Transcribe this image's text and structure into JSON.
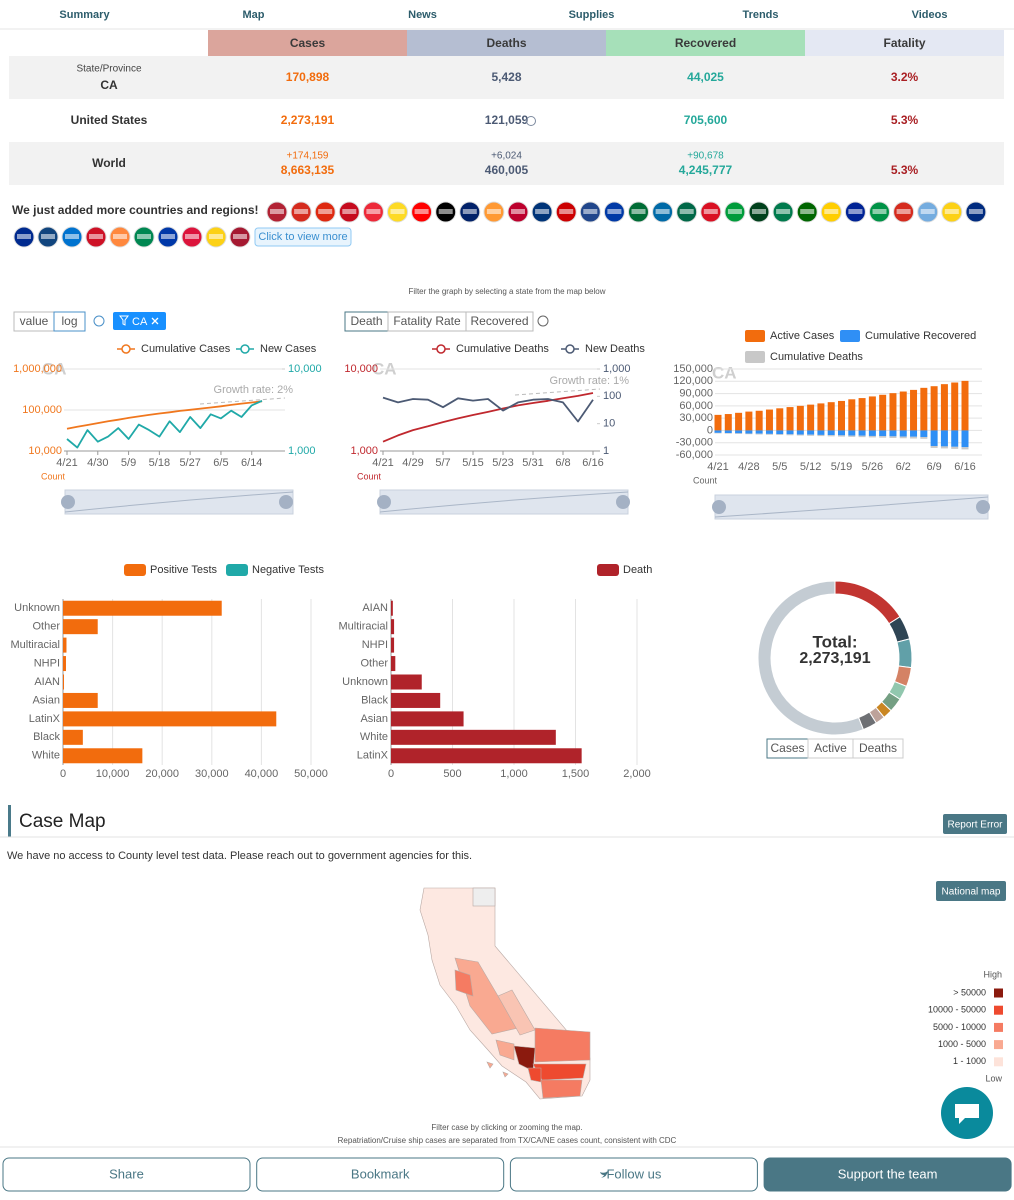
{
  "nav": [
    "Summary",
    "Map",
    "News",
    "Supplies",
    "Trends",
    "Videos"
  ],
  "summary": {
    "headers": [
      "Cases",
      "Deaths",
      "Recovered",
      "Fatality"
    ],
    "rows": [
      {
        "sublabel": "State/Province",
        "label": "CA",
        "values": [
          "170,898",
          "5,428",
          "44,025",
          "3.2%"
        ]
      },
      {
        "label": "United States",
        "values": [
          "2,273,191",
          "121,059",
          "705,600",
          "5.3%"
        ]
      },
      {
        "label": "World",
        "changes": [
          "+174,159",
          "+6,024",
          "+90,678"
        ],
        "values": [
          "8,663,135",
          "460,005",
          "4,245,777",
          "5.3%"
        ]
      }
    ]
  },
  "regions": {
    "text": "We just added more countries and regions!",
    "button": "Click to view more"
  },
  "filter_note": "Filter the graph by selecting a state from the map below",
  "trend_controls": {
    "scale": [
      "value",
      "log"
    ],
    "state_filter": "CA"
  },
  "death_controls": [
    "Death",
    "Fatality Rate",
    "Recovered"
  ],
  "charts": [
    {
      "type": "line",
      "watermark": "CA",
      "log_scale": true,
      "categories": [
        "4/21",
        null,
        null,
        "4/30",
        null,
        null,
        "5/9",
        null,
        null,
        "5/18",
        null,
        null,
        "5/27",
        null,
        null,
        "6/5",
        null,
        null,
        "6/14",
        null
      ],
      "series": [
        {
          "name": "Cumulative Cases",
          "color": "#f0771e",
          "values": [
            35000,
            39000,
            43000,
            48000,
            53000,
            58000,
            64000,
            70000,
            76000,
            82000,
            88000,
            95000,
            101000,
            108000,
            115000,
            123000,
            133000,
            143000,
            152000,
            163000
          ]
        },
        {
          "name": "New Cases",
          "color": "#20a9a8",
          "axis": "y2",
          "values": [
            1400,
            1100,
            1800,
            1300,
            1500,
            1900,
            1400,
            2100,
            1800,
            1500,
            2300,
            1700,
            2600,
            1900,
            2800,
            2500,
            3100,
            2600,
            3600,
            4100
          ]
        }
      ],
      "ylim": [
        10000,
        1000000
      ],
      "yticks": [
        {
          "value": 10000,
          "label": "10,000"
        },
        {
          "value": 100000,
          "label": "100,000"
        },
        {
          "value": 1000000,
          "label": "1,000,000"
        }
      ],
      "y2lim": [
        1000,
        10000
      ],
      "y2ticks": [
        {
          "value": 1000,
          "label": "1,000"
        },
        {
          "value": 10000,
          "label": "10,000"
        }
      ],
      "annotation": "Growth rate: 2%",
      "ylabel": "Count"
    },
    {
      "type": "line",
      "watermark": "CA",
      "log_scale": true,
      "categories": [
        "4/21",
        null,
        "4/29",
        null,
        "5/7",
        null,
        "5/15",
        null,
        "5/23",
        null,
        "5/31",
        null,
        "6/8",
        null,
        "6/16"
      ],
      "series": [
        {
          "name": "Cumulative Deaths",
          "color": "#c0282e",
          "values": [
            1300,
            1550,
            1800,
            2000,
            2250,
            2500,
            2750,
            3000,
            3300,
            3600,
            3850,
            4100,
            4400,
            4700,
            5100
          ]
        },
        {
          "name": "New Deaths",
          "color": "#4c5a74",
          "axis": "y2",
          "values": [
            90,
            60,
            80,
            75,
            40,
            85,
            70,
            80,
            30,
            60,
            75,
            80,
            60,
            12,
            75
          ]
        }
      ],
      "ylim": [
        1000,
        10000
      ],
      "yticks": [
        {
          "value": 1000,
          "label": "1,000"
        },
        {
          "value": 10000,
          "label": "10,000"
        }
      ],
      "y2lim": [
        1,
        1000
      ],
      "y2ticks": [
        1,
        10,
        100,
        {
          "value": 1000,
          "label": "1,000"
        }
      ],
      "annotation": "Growth rate: 1%",
      "ylabel": "Count"
    },
    {
      "type": "stacked-bar",
      "watermark": "CA",
      "categories": [
        "4/21",
        null,
        null,
        "4/28",
        null,
        null,
        "5/5",
        null,
        null,
        "5/12",
        null,
        null,
        "5/19",
        null,
        null,
        "5/26",
        null,
        null,
        "6/2",
        null,
        null,
        "6/9",
        null,
        null,
        "6/16"
      ],
      "series": [
        {
          "name": "Active Cases",
          "color": "#f26c0d",
          "values": [
            38000,
            40000,
            43000,
            46000,
            48000,
            51000,
            54000,
            57000,
            60000,
            63000,
            66000,
            69000,
            72000,
            76000,
            79000,
            83000,
            87000,
            91000,
            95000,
            99000,
            104000,
            108000,
            113000,
            117000,
            121000
          ]
        },
        {
          "name": "Cumulative Recovered",
          "color": "#2f8ff5",
          "values": [
            -6000,
            -6500,
            -7000,
            -7500,
            -8000,
            -8500,
            -9000,
            -9500,
            -10000,
            -10500,
            -11000,
            -11500,
            -12000,
            -12500,
            -13000,
            -13500,
            -14000,
            -14500,
            -15000,
            -15500,
            -16000,
            -38000,
            -39000,
            -40000,
            -41000
          ]
        },
        {
          "name": "Cumulative Deaths",
          "color": "#c8c8c8",
          "values": [
            -1300,
            -1450,
            -1600,
            -1750,
            -1900,
            -2050,
            -2200,
            -2350,
            -2500,
            -2650,
            -2800,
            -2950,
            -3100,
            -3250,
            -3400,
            -3550,
            -3700,
            -3900,
            -4100,
            -4300,
            -4500,
            -4700,
            -4900,
            -5100,
            -5300
          ]
        }
      ],
      "ylim": [
        -60000,
        150000
      ],
      "yticks": [
        {
          "value": -60000,
          "label": "-60,000"
        },
        {
          "value": -30000,
          "label": "-30,000"
        },
        0,
        {
          "value": 30000,
          "label": "30,000"
        },
        {
          "value": 60000,
          "label": "60,000"
        },
        {
          "value": 90000,
          "label": "90,000"
        },
        {
          "value": 120000,
          "label": "120,000"
        },
        {
          "value": 150000,
          "label": "150,000"
        }
      ],
      "ylabel": "Count"
    },
    {
      "type": "hbar",
      "categories": [
        "Unknown",
        "Other",
        "Multiracial",
        "NHPI",
        "AIAN",
        "Asian",
        "LatinX",
        "Black",
        "White"
      ],
      "series": [
        {
          "name": "Positive Tests",
          "color": "#f26c0d",
          "values": [
            32000,
            7000,
            700,
            600,
            200,
            7000,
            43000,
            4000,
            16000
          ]
        },
        {
          "name": "Negative Tests",
          "color": "#20a9a8",
          "values": [
            0,
            0,
            0,
            0,
            0,
            0,
            0,
            0,
            0
          ]
        }
      ],
      "xlim": [
        0,
        50000
      ],
      "xticks": [
        0,
        {
          "value": 10000,
          "label": "10,000"
        },
        {
          "value": 20000,
          "label": "20,000"
        },
        {
          "value": 30000,
          "label": "30,000"
        },
        {
          "value": 40000,
          "label": "40,000"
        },
        {
          "value": 50000,
          "label": "50,000"
        }
      ],
      "grid": true
    },
    {
      "type": "hbar",
      "categories": [
        "AIAN",
        "Multiracial",
        "NHPI",
        "Other",
        "Unknown",
        "Black",
        "Asian",
        "White",
        "LatinX"
      ],
      "series": [
        {
          "name": "Death",
          "color": "#b0232a",
          "values": [
            15,
            25,
            25,
            35,
            250,
            400,
            590,
            1340,
            1550
          ]
        }
      ],
      "xlim": [
        0,
        2000
      ],
      "xticks": [
        0,
        500,
        {
          "value": 1000,
          "label": "1,000"
        },
        {
          "value": 1500,
          "label": "1,500"
        },
        {
          "value": 2000,
          "label": "2,000"
        }
      ],
      "grid": true
    },
    {
      "type": "donut",
      "values": [
        16,
        5,
        6,
        4,
        3,
        3,
        2,
        2,
        3,
        56
      ],
      "colors": [
        "#c23531",
        "#2f4554",
        "#61a0a8",
        "#d48265",
        "#91c7ae",
        "#749f83",
        "#ca8622",
        "#bda29a",
        "#6e7074",
        "#c4ccd3"
      ],
      "center_title": "Total:",
      "center_value": "2,273,191",
      "buttons": [
        "Cases",
        "Active",
        "Deaths"
      ]
    }
  ],
  "case_map": {
    "title": "Case Map",
    "report_button": "Report Error",
    "note": "We have no access to County level test data. Please reach out to government agencies for this.",
    "national_button": "National map",
    "legend": {
      "high": "High",
      "low": "Low",
      "items": [
        {
          "label": "> 50000",
          "color": "#8b1a0e"
        },
        {
          "label": "10000 - 50000",
          "color": "#ee4a2f"
        },
        {
          "label": "5000 - 10000",
          "color": "#f57b62"
        },
        {
          "label": "1000 - 5000",
          "color": "#f9a991"
        },
        {
          "label": "1 - 1000",
          "color": "#fde3da"
        }
      ]
    },
    "footnotes": [
      "Filter case by clicking or zooming the map.",
      "Repatriation/Cruise ship cases are separated from TX/CA/NE cases count, consistent with CDC"
    ]
  },
  "footer": [
    "Share",
    "Bookmark",
    "Follow us",
    "Support the team"
  ]
}
